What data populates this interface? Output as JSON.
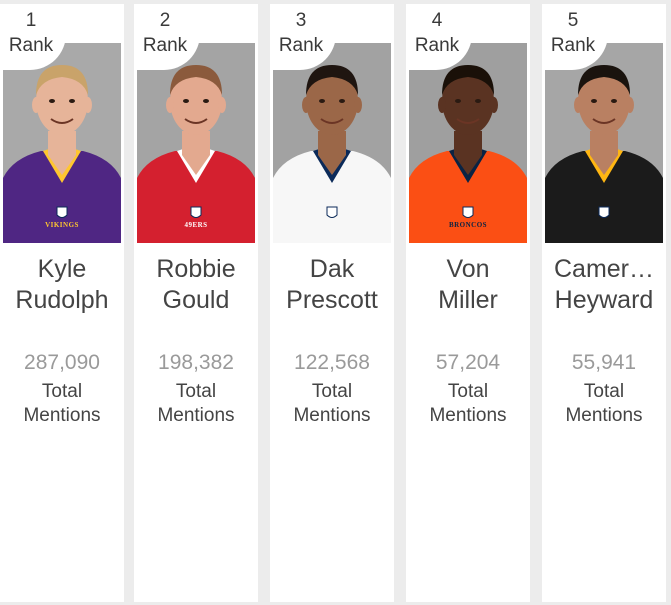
{
  "rank_word": "Rank",
  "metric_line1": "Total",
  "metric_line2": "Mentions",
  "players": [
    {
      "rank": "1",
      "first": "Kyle",
      "last": "Rudolph",
      "mentions": "287,090",
      "jersey": "#4f2683",
      "accent": "#ffc62f",
      "skin": "#e6b499",
      "hair": "#c9a36a",
      "bg": "#a9a9a9",
      "wordmark": "VIKINGS"
    },
    {
      "rank": "2",
      "first": "Robbie",
      "last": "Gould",
      "mentions": "198,382",
      "jersey": "#d4202f",
      "accent": "#ffffff",
      "skin": "#e3a98f",
      "hair": "#8b5a3c",
      "bg": "#a4a4a4",
      "wordmark": "49ERS"
    },
    {
      "rank": "3",
      "first": "Dak",
      "last": "Prescott",
      "mentions": "122,568",
      "jersey": "#f7f7f7",
      "accent": "#0b2a59",
      "skin": "#9b6748",
      "hair": "#1f1510",
      "bg": "#a2a2a2",
      "wordmark": ""
    },
    {
      "rank": "4",
      "first": "Von",
      "last": "Miller",
      "mentions": "57,204",
      "jersey": "#fb4f14",
      "accent": "#0a2343",
      "skin": "#5a3322",
      "hair": "#1a1008",
      "bg": "#9f9f9f",
      "wordmark": "BRONCOS"
    },
    {
      "rank": "5",
      "first": "Camer…",
      "last": "Heyward",
      "mentions": "55,941",
      "jersey": "#1b1b1b",
      "accent": "#ffb612",
      "skin": "#b98062",
      "hair": "#1a130e",
      "bg": "#a6a6a6",
      "wordmark": ""
    }
  ]
}
